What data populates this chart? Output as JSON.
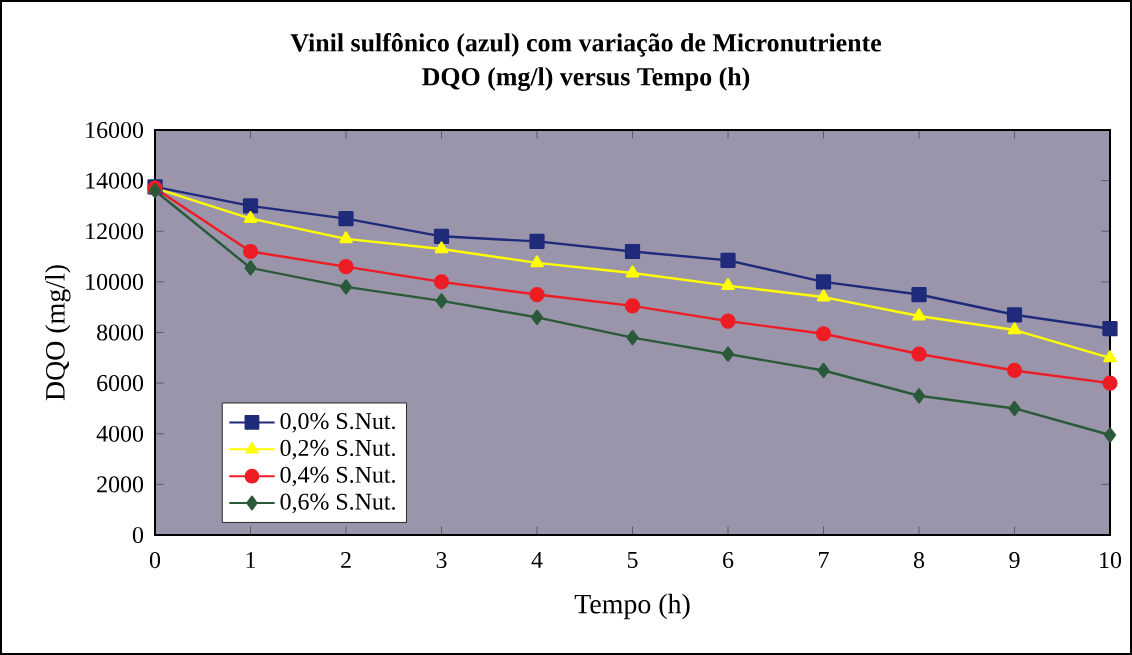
{
  "chart_data": {
    "type": "line",
    "title": "Vinil sulfônico (azul) com variação de  Micronutriente\nDQO (mg/l)  versus Tempo (h)",
    "xlabel": "Tempo (h)",
    "ylabel": "DQO (mg/l)",
    "x": [
      0,
      1,
      2,
      3,
      4,
      5,
      6,
      7,
      8,
      9,
      10
    ],
    "xlim": [
      0,
      10
    ],
    "xticks": [
      0,
      1,
      2,
      3,
      4,
      5,
      6,
      7,
      8,
      9,
      10
    ],
    "ylim": [
      0,
      16000
    ],
    "yticks": [
      0,
      2000,
      4000,
      6000,
      8000,
      10000,
      12000,
      14000,
      16000
    ],
    "grid": false,
    "legend": "bottom left",
    "line_style": "solid",
    "series": [
      {
        "name": "0,0% S.Nut.",
        "color": "#1f2a7a",
        "marker": "square",
        "values": [
          13750,
          13000,
          12500,
          11800,
          11600,
          11200,
          10850,
          10000,
          9500,
          8700,
          8150
        ]
      },
      {
        "name": "0,2% S.Nut.",
        "color": "#ffff00",
        "marker": "triangle",
        "values": [
          13700,
          12500,
          11700,
          11300,
          10750,
          10350,
          9850,
          9400,
          8650,
          8100,
          7000
        ]
      },
      {
        "name": "0,4% S.Nut.",
        "color": "#ee1c24",
        "marker": "circle",
        "values": [
          13700,
          11200,
          10600,
          10000,
          9500,
          9050,
          8450,
          7950,
          7150,
          6500,
          6000
        ]
      },
      {
        "name": "0,6% S.Nut.",
        "color": "#2a5a3a",
        "marker": "diamond",
        "values": [
          13600,
          10550,
          9800,
          9250,
          8600,
          7800,
          7150,
          6500,
          5500,
          5000,
          3950
        ]
      }
    ]
  }
}
